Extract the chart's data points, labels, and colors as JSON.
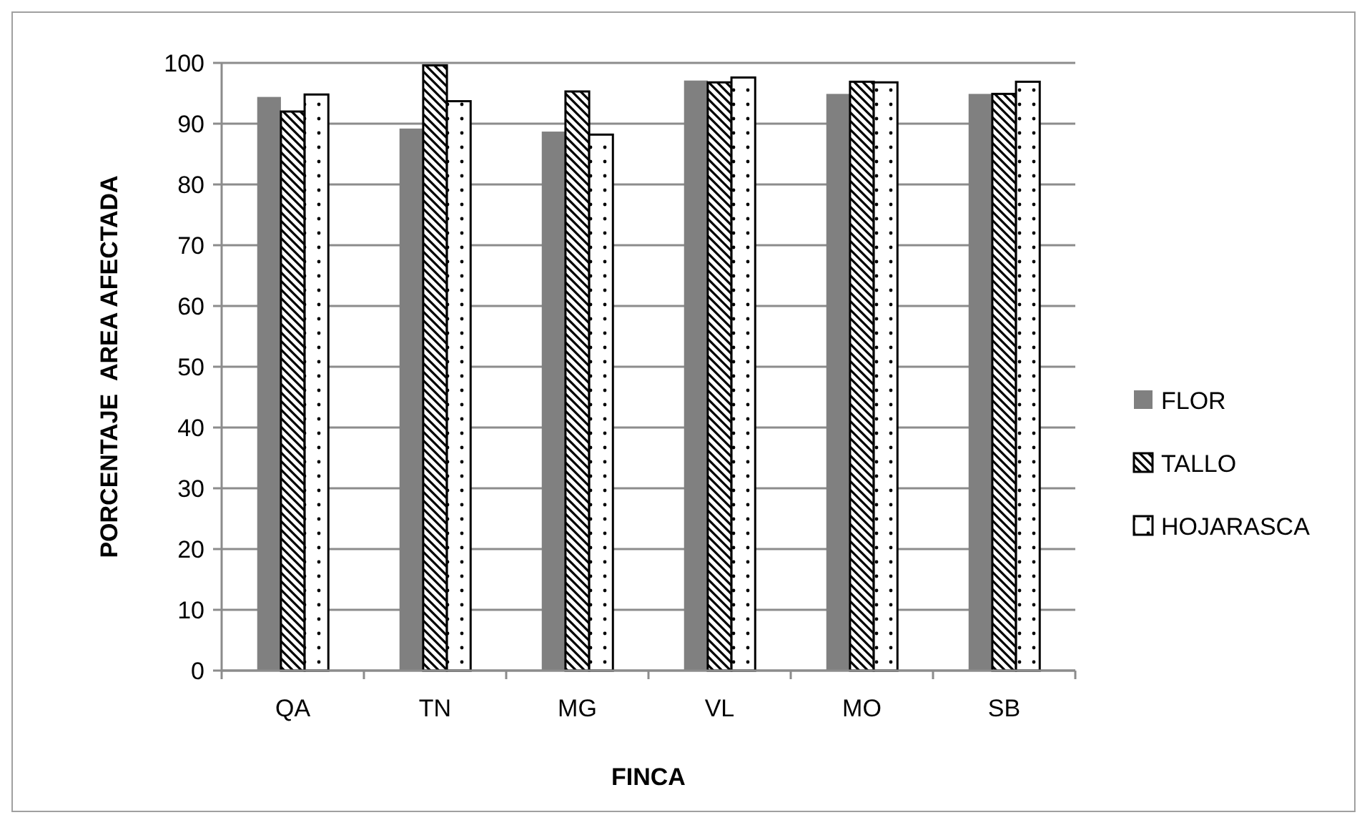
{
  "chart_data": {
    "type": "bar",
    "xlabel": "FINCA",
    "ylabel": "PORCENTAJE  AREA AFECTADA",
    "categories": [
      "QA",
      "TN",
      "MG",
      "VL",
      "MO",
      "SB"
    ],
    "series": [
      {
        "name": "FLOR",
        "color": "#808080",
        "values": [
          94.4,
          89.2,
          88.7,
          97.1,
          94.9,
          94.9
        ]
      },
      {
        "name": "TALLO",
        "color": "#000000",
        "values": [
          92.0,
          99.6,
          95.3,
          96.8,
          96.9,
          94.9
        ]
      },
      {
        "name": "HOJARASCA",
        "color": "#000000",
        "values": [
          94.8,
          93.7,
          88.2,
          97.6,
          96.8,
          96.9
        ]
      }
    ],
    "ylim": [
      0,
      100
    ],
    "yticks": [
      0,
      10,
      20,
      30,
      40,
      50,
      60,
      70,
      80,
      90,
      100
    ],
    "grid": "y",
    "legend": "right"
  }
}
